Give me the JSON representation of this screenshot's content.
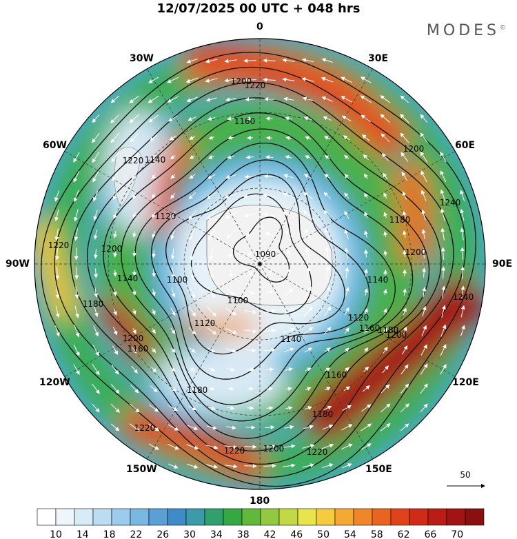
{
  "title": "12/07/2025  00 UTC  + 048 hrs",
  "brand": "MODES",
  "brand_mark": "©",
  "longitude_labels": [
    {
      "text": "0",
      "lon": 0
    },
    {
      "text": "30E",
      "lon": 30
    },
    {
      "text": "60E",
      "lon": 60
    },
    {
      "text": "90E",
      "lon": 90
    },
    {
      "text": "120E",
      "lon": 120
    },
    {
      "text": "150E",
      "lon": 150
    },
    {
      "text": "180",
      "lon": 180
    },
    {
      "text": "150W",
      "lon": -150
    },
    {
      "text": "120W",
      "lon": -120
    },
    {
      "text": "90W",
      "lon": -90
    },
    {
      "text": "60W",
      "lon": -60
    },
    {
      "text": "30W",
      "lon": -30
    }
  ],
  "contour_labels": [
    "1090",
    "1100",
    "1100",
    "1120",
    "1120",
    "1120",
    "1140",
    "1140",
    "1140",
    "1140",
    "1160",
    "1160",
    "1160",
    "1160",
    "1180",
    "1180",
    "1180",
    "1180",
    "1180",
    "1200",
    "1200",
    "1200",
    "1200",
    "1200",
    "1200",
    "1200",
    "1220",
    "1220",
    "1220",
    "1220",
    "1220",
    "1220",
    "1240",
    "1240"
  ],
  "wind_reference": {
    "label": "50",
    "value": 50
  },
  "colorbar": {
    "tick_labels": [
      "10",
      "14",
      "18",
      "22",
      "26",
      "30",
      "34",
      "38",
      "42",
      "46",
      "50",
      "54",
      "58",
      "62",
      "66",
      "70"
    ],
    "colors": [
      "#ffffff",
      "#eef6fc",
      "#d8ecf8",
      "#bcdcf2",
      "#9ccbeb",
      "#7ab7e2",
      "#5aa0d6",
      "#3f8bc8",
      "#3d9aa8",
      "#2fa06e",
      "#35a844",
      "#62b83a",
      "#93c93e",
      "#c3d845",
      "#e8e54a",
      "#f5cc3d",
      "#f5a932",
      "#f08628",
      "#ea6421",
      "#e0421c",
      "#d02a18",
      "#bb1c16",
      "#a21414",
      "#8a1010"
    ]
  }
}
